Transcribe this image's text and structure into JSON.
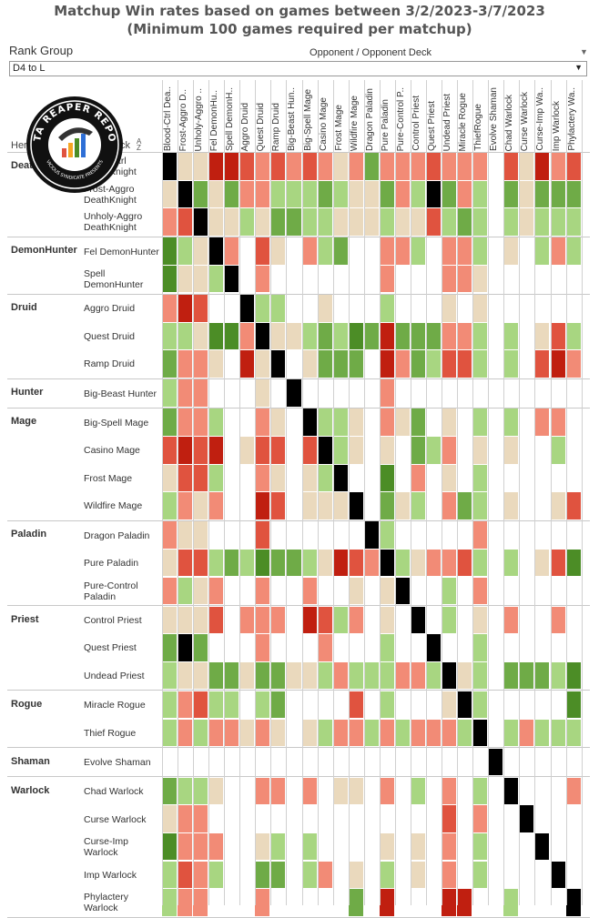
{
  "title_line1": "Matchup Win rates based on games between 3/2/2023-3/7/2023",
  "title_line2": "(Minimum 100 games required per matchup)",
  "rank_group_label": "Rank Group",
  "rank_group_value": "D4 to L",
  "opponent_header": "Opponent / Opponent Deck",
  "header_class": "Hero",
  "header_deck": "Deck",
  "logo_text": "DATA REAPER REPORT",
  "logo_subtext": "VICIOUS SYNDICATE PRESENTS",
  "colors": {
    "dark_green": "#4c8d26",
    "green": "#6fab47",
    "light_green": "#a8d681",
    "beige": "#ead9bd",
    "light_red": "#f28b76",
    "red": "#e0533f",
    "dark_red": "#c01f10",
    "mirror": "#000000",
    "empty": "#ffffff"
  },
  "chart_data": {
    "type": "heatmap",
    "title": "Matchup Win rates based on games between 3/2/2023-3/7/2023",
    "subtitle": "(Minimum 100 games required per matchup)",
    "legend": "none",
    "scale": "cell color codes: 3=dark green, 2=green, 1=light green, 0=beige, -1=light red, -2=red, -3=dark red, M=mirror, null=insufficient data",
    "columns": [
      "Blood-Ctrl Dea..",
      "Frost-Aggro D..",
      "Unholy-Aggro ..",
      "Fel DemonHu..",
      "Spell DemonH..",
      "Aggro Druid",
      "Quest Druid",
      "Ramp Druid",
      "Big-Beast Hun..",
      "Big-Spell Mage",
      "Casino Mage",
      "Frost Mage",
      "Wildfire Mage",
      "Dragon Paladin",
      "Pure Paladin",
      "Pure-Control P..",
      "Control Priest",
      "Quest Priest",
      "Undead Priest",
      "Miracle Rogue",
      "ThiefRogue",
      "Evolve Shaman",
      "Chad Warlock",
      "Curse Warlock",
      "Curse-Imp Wa..",
      "Imp Warlock",
      "Phylactery Wa.."
    ],
    "groups": [
      {
        "class": "DeathKnight",
        "decks": [
          {
            "name": "Blood-Ctrl DeathKnight",
            "values": [
              "M",
              0,
              0,
              -3,
              -3,
              -2,
              -1,
              -2,
              -1,
              -2,
              -1,
              0,
              -1,
              2,
              -1,
              -1,
              -1,
              -2,
              -1,
              -1,
              -1,
              null,
              -2,
              0,
              -3,
              -1,
              -2
            ]
          },
          {
            "name": "Frost-Aggro DeathKnight",
            "values": [
              0,
              "M",
              2,
              0,
              2,
              -1,
              -1,
              1,
              1,
              1,
              2,
              1,
              0,
              0,
              2,
              -1,
              1,
              "M",
              2,
              -1,
              1,
              null,
              2,
              0,
              2,
              2,
              2
            ]
          },
          {
            "name": "Unholy-Aggro DeathKnight",
            "values": [
              -1,
              -2,
              "M",
              0,
              0,
              1,
              0,
              2,
              2,
              1,
              1,
              0,
              0,
              0,
              1,
              0,
              0,
              -2,
              1,
              2,
              1,
              null,
              1,
              0,
              1,
              1,
              1
            ]
          }
        ]
      },
      {
        "class": "DemonHunter",
        "decks": [
          {
            "name": "Fel DemonHunter",
            "values": [
              3,
              1,
              0,
              "M",
              -1,
              null,
              -2,
              0,
              null,
              -1,
              1,
              2,
              null,
              null,
              -1,
              -1,
              1,
              null,
              -1,
              -1,
              1,
              null,
              0,
              null,
              1,
              -1,
              1
            ]
          },
          {
            "name": "Spell DemonHunter",
            "values": [
              3,
              0,
              0,
              1,
              "M",
              null,
              -1,
              null,
              null,
              null,
              null,
              null,
              null,
              null,
              -1,
              null,
              null,
              null,
              -1,
              -1,
              0,
              null,
              null,
              null,
              null,
              null,
              null
            ]
          }
        ]
      },
      {
        "class": "Druid",
        "decks": [
          {
            "name": "Aggro Druid",
            "values": [
              -1,
              -3,
              -2,
              null,
              null,
              "M",
              1,
              1,
              null,
              null,
              0,
              null,
              null,
              null,
              1,
              null,
              null,
              null,
              0,
              null,
              0,
              null,
              null,
              null,
              null,
              null,
              null
            ]
          },
          {
            "name": "Quest Druid",
            "values": [
              1,
              1,
              0,
              3,
              3,
              -1,
              "M",
              0,
              0,
              1,
              2,
              1,
              3,
              2,
              -3,
              2,
              2,
              2,
              -1,
              -1,
              1,
              null,
              1,
              null,
              0,
              -2,
              1
            ]
          },
          {
            "name": "Ramp Druid",
            "values": [
              2,
              -1,
              -1,
              0,
              null,
              -3,
              0,
              "M",
              null,
              0,
              2,
              2,
              2,
              null,
              -3,
              -1,
              2,
              1,
              -2,
              -2,
              1,
              null,
              1,
              null,
              -2,
              -3,
              -1
            ]
          }
        ]
      },
      {
        "class": "Hunter",
        "decks": [
          {
            "name": "Big-Beast Hunter",
            "values": [
              1,
              -1,
              -1,
              null,
              null,
              null,
              0,
              null,
              "M",
              null,
              null,
              null,
              null,
              null,
              -1,
              null,
              null,
              null,
              null,
              null,
              null,
              null,
              null,
              null,
              null,
              null,
              null
            ]
          }
        ]
      },
      {
        "class": "Mage",
        "decks": [
          {
            "name": "Big-Spell Mage",
            "values": [
              2,
              -1,
              -1,
              1,
              null,
              null,
              -1,
              0,
              null,
              "M",
              1,
              1,
              0,
              null,
              -1,
              0,
              2,
              null,
              0,
              null,
              1,
              null,
              1,
              null,
              -1,
              -1,
              null
            ]
          },
          {
            "name": "Casino Mage",
            "values": [
              -2,
              -3,
              -2,
              -3,
              null,
              0,
              -2,
              -2,
              null,
              -2,
              "M",
              1,
              0,
              null,
              0,
              null,
              2,
              1,
              -1,
              null,
              0,
              null,
              0,
              null,
              null,
              1,
              null
            ]
          },
          {
            "name": "Frost Mage",
            "values": [
              0,
              -2,
              -2,
              1,
              null,
              null,
              -1,
              0,
              null,
              0,
              1,
              "M",
              null,
              null,
              3,
              null,
              -1,
              null,
              0,
              null,
              1,
              null,
              null,
              null,
              null,
              null,
              null
            ]
          },
          {
            "name": "Wildfire Mage",
            "values": [
              1,
              -1,
              0,
              -1,
              null,
              null,
              -3,
              -2,
              null,
              0,
              0,
              0,
              "M",
              null,
              2,
              0,
              1,
              null,
              -1,
              2,
              1,
              null,
              0,
              null,
              null,
              0,
              -2
            ]
          }
        ]
      },
      {
        "class": "Paladin",
        "decks": [
          {
            "name": "Dragon Paladin",
            "values": [
              -1,
              0,
              0,
              null,
              null,
              null,
              -2,
              null,
              null,
              null,
              null,
              null,
              null,
              "M",
              1,
              null,
              null,
              null,
              null,
              null,
              -1,
              null,
              null,
              null,
              null,
              null,
              null
            ]
          },
          {
            "name": "Pure Paladin",
            "values": [
              0,
              -2,
              -2,
              1,
              2,
              1,
              3,
              2,
              2,
              1,
              0,
              -3,
              -2,
              -1,
              "M",
              1,
              0,
              -1,
              -1,
              -2,
              1,
              null,
              1,
              null,
              0,
              -2,
              3
            ]
          },
          {
            "name": "Pure-Control Paladin",
            "values": [
              -1,
              1,
              0,
              -1,
              null,
              null,
              -1,
              null,
              null,
              -1,
              null,
              null,
              0,
              null,
              0,
              "M",
              null,
              null,
              1,
              null,
              -1,
              null,
              null,
              null,
              null,
              null,
              null
            ]
          }
        ]
      },
      {
        "class": "Priest",
        "decks": [
          {
            "name": "Control Priest",
            "values": [
              0,
              0,
              0,
              -2,
              null,
              -1,
              -1,
              -1,
              null,
              -3,
              -2,
              1,
              -1,
              null,
              0,
              null,
              "M",
              null,
              1,
              null,
              0,
              null,
              -1,
              null,
              null,
              -1,
              null
            ]
          },
          {
            "name": "Quest Priest",
            "values": [
              2,
              "M",
              2,
              null,
              null,
              null,
              -1,
              null,
              null,
              null,
              -1,
              null,
              null,
              null,
              1,
              null,
              null,
              "M",
              null,
              null,
              1,
              null,
              null,
              null,
              null,
              null,
              null
            ]
          },
          {
            "name": "Undead Priest",
            "values": [
              1,
              0,
              0,
              2,
              2,
              0,
              2,
              2,
              0,
              0,
              1,
              -1,
              1,
              1,
              1,
              -1,
              -1,
              1,
              "M",
              0,
              1,
              null,
              2,
              2,
              2,
              1,
              3
            ]
          }
        ]
      },
      {
        "class": "Rogue",
        "decks": [
          {
            "name": "Miracle Rogue",
            "values": [
              1,
              -1,
              -2,
              1,
              1,
              null,
              1,
              2,
              null,
              null,
              null,
              null,
              -2,
              null,
              1,
              null,
              null,
              null,
              0,
              "M",
              1,
              null,
              null,
              null,
              null,
              null,
              3
            ]
          },
          {
            "name": "Thief Rogue",
            "values": [
              1,
              -1,
              1,
              -1,
              -1,
              0,
              -1,
              0,
              null,
              0,
              1,
              -1,
              -1,
              1,
              -1,
              1,
              -1,
              -1,
              -1,
              1,
              "M",
              null,
              1,
              -1,
              1,
              1,
              1
            ]
          }
        ]
      },
      {
        "class": "Shaman",
        "decks": [
          {
            "name": "Evolve Shaman",
            "values": [
              null,
              null,
              null,
              null,
              null,
              null,
              null,
              null,
              null,
              null,
              null,
              null,
              null,
              null,
              null,
              null,
              null,
              null,
              null,
              null,
              null,
              "M",
              null,
              null,
              null,
              null,
              null
            ]
          }
        ]
      },
      {
        "class": "Warlock",
        "decks": [
          {
            "name": "Chad Warlock",
            "values": [
              2,
              1,
              1,
              0,
              null,
              null,
              -1,
              -1,
              null,
              -1,
              null,
              0,
              0,
              null,
              -1,
              null,
              1,
              null,
              -1,
              null,
              1,
              null,
              "M",
              null,
              null,
              null,
              -1
            ]
          },
          {
            "name": "Curse Warlock",
            "values": [
              0,
              -1,
              -1,
              null,
              null,
              null,
              null,
              null,
              null,
              null,
              null,
              null,
              null,
              null,
              null,
              null,
              null,
              null,
              -2,
              null,
              -1,
              null,
              null,
              "M",
              null,
              null,
              null
            ]
          },
          {
            "name": "Curse-Imp Warlock",
            "values": [
              3,
              -1,
              -1,
              -1,
              null,
              null,
              0,
              1,
              null,
              1,
              null,
              null,
              null,
              null,
              0,
              null,
              0,
              null,
              -1,
              null,
              1,
              null,
              null,
              null,
              "M",
              null,
              null
            ]
          },
          {
            "name": "Imp Warlock",
            "values": [
              1,
              -2,
              -1,
              1,
              null,
              null,
              2,
              2,
              null,
              1,
              -1,
              null,
              0,
              null,
              1,
              null,
              0,
              null,
              -1,
              null,
              1,
              null,
              null,
              null,
              null,
              "M",
              null
            ]
          },
          {
            "name": "Phylactery Warlock",
            "values": [
              1,
              -1,
              -1,
              null,
              null,
              null,
              -1,
              null,
              null,
              null,
              null,
              null,
              2,
              null,
              -3,
              null,
              null,
              null,
              -3,
              -3,
              null,
              null,
              1,
              null,
              null,
              null,
              "M"
            ]
          }
        ]
      }
    ]
  }
}
